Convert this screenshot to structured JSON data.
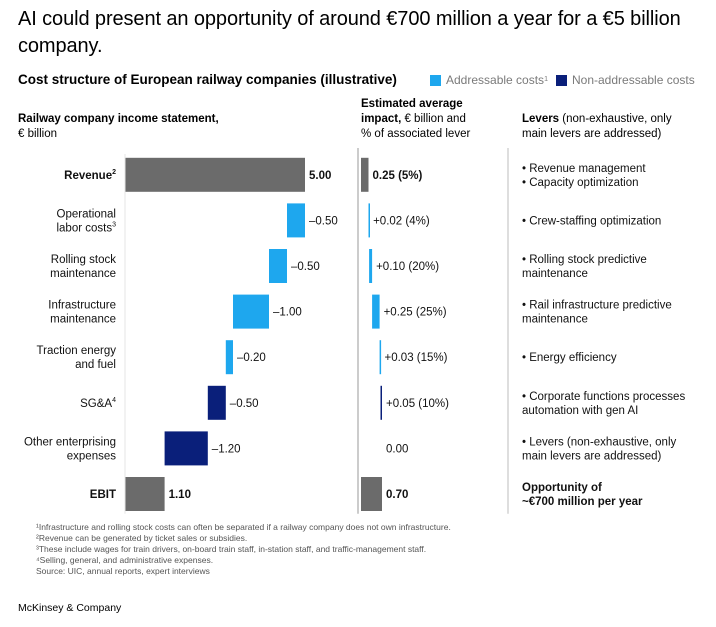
{
  "title": "AI could present an opportunity of around €700 million a year for a €5 billion company.",
  "subtitle": "Cost structure of European railway companies (illustrative)",
  "legend": [
    {
      "label": "Addressable costs",
      "sup": "1",
      "color": "#1ea7ee"
    },
    {
      "label": "Non-addressable costs",
      "sup": "",
      "color": "#0a1f7a"
    }
  ],
  "headers": {
    "income_bold": "Railway company income statement,",
    "income_rest": "€ billion",
    "impact_bold": "Estimated average impact,",
    "impact_rest1": "€ billion and",
    "impact_rest2": "% of associated lever",
    "levers_bold": "Levers",
    "levers_rest1": "(non-exhaustive, only",
    "levers_rest2": "main levers are addressed)"
  },
  "colors": {
    "total": "#6b6b6b",
    "addressable": "#1ea7ee",
    "non_addressable": "#0a1f7a"
  },
  "chart_data": {
    "type": "bar",
    "subtype": "waterfall",
    "unit": "€ billion",
    "rows": [
      {
        "label": [
          "Revenue"
        ],
        "label_sup": "2",
        "bold": true,
        "kind": "total",
        "value": 5.0,
        "value_label": "5.00",
        "impact": 0.25,
        "impact_label": "0.25 (5%)",
        "levers": [
          "• Revenue management",
          "• Capacity optimization"
        ],
        "levers_bold": false
      },
      {
        "label": [
          "Operational",
          "labor costs"
        ],
        "label_sup": "3",
        "bold": false,
        "kind": "addressable",
        "value": -0.5,
        "value_label": "–0.50",
        "impact": 0.02,
        "impact_label": "+0.02 (4%)",
        "levers": [
          "• Crew-staffing optimization"
        ],
        "levers_bold": false
      },
      {
        "label": [
          "Rolling stock",
          "maintenance"
        ],
        "label_sup": "",
        "bold": false,
        "kind": "addressable",
        "value": -0.5,
        "value_label": "–0.50",
        "impact": 0.1,
        "impact_label": "+0.10 (20%)",
        "levers": [
          "• Rolling stock predictive",
          "   maintenance"
        ],
        "levers_bold": false
      },
      {
        "label": [
          "Infrastructure",
          "maintenance"
        ],
        "label_sup": "",
        "bold": false,
        "kind": "addressable",
        "value": -1.0,
        "value_label": "–1.00",
        "impact": 0.25,
        "impact_label": "+0.25 (25%)",
        "levers": [
          "• Rail infrastructure predictive",
          "   maintenance"
        ],
        "levers_bold": false
      },
      {
        "label": [
          "Traction energy",
          "and fuel"
        ],
        "label_sup": "",
        "bold": false,
        "kind": "addressable",
        "value": -0.2,
        "value_label": "–0.20",
        "impact": 0.03,
        "impact_label": "+0.03 (15%)",
        "levers": [
          "• Energy efficiency"
        ],
        "levers_bold": false
      },
      {
        "label": [
          "SG&A"
        ],
        "label_sup": "4",
        "bold": false,
        "kind": "non_addressable",
        "value": -0.5,
        "value_label": "–0.50",
        "impact": 0.05,
        "impact_label": "+0.05 (10%)",
        "levers": [
          "• Corporate functions processes",
          "   automation with gen AI"
        ],
        "levers_bold": false
      },
      {
        "label": [
          "Other enterprising",
          "expenses"
        ],
        "label_sup": "",
        "bold": false,
        "kind": "non_addressable",
        "value": -1.2,
        "value_label": "–1.20",
        "impact": 0.0,
        "impact_label": "0.00",
        "levers": [
          "• Levers  (non-exhaustive, only",
          "   main levers are addressed)"
        ],
        "levers_bold": false
      },
      {
        "label": [
          "EBIT"
        ],
        "label_sup": "",
        "bold": true,
        "kind": "total",
        "value": 1.1,
        "value_label": "1.10",
        "impact": 0.7,
        "impact_label": "0.70",
        "levers": [
          "Opportunity of",
          "~€700 million per year"
        ],
        "levers_bold": true
      }
    ],
    "xlim": [
      0,
      5.0
    ]
  },
  "footnotes": [
    "¹Infrastructure and rolling stock costs can often be separated if a railway company does not own infrastructure.",
    "²Revenue can be generated by ticket sales or subsidies.",
    "³These include wages for train drivers, on-board train staff, in-station staff, and traffic-management staff.",
    "⁴Selling, general, and administrative expenses.",
    " Source: UIC, annual reports, expert interviews"
  ],
  "brand": "McKinsey & Company"
}
